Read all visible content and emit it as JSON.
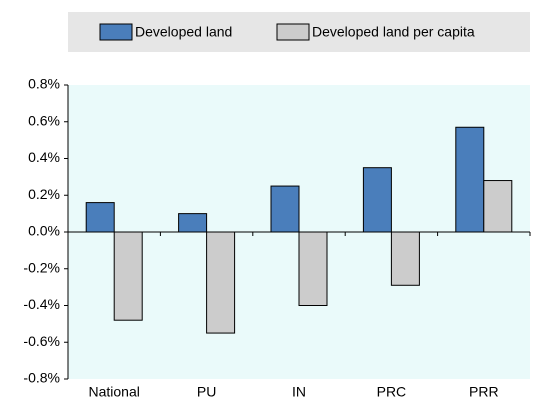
{
  "chart_data": {
    "type": "bar",
    "categories": [
      "National",
      "PU",
      "IN",
      "PRC",
      "PRR"
    ],
    "series": [
      {
        "name": "Developed land",
        "color": "#4a7ebb",
        "values": [
          0.16,
          0.1,
          0.25,
          0.35,
          0.57
        ]
      },
      {
        "name": "Developed land per capita",
        "color": "#cccccc",
        "values": [
          -0.48,
          -0.55,
          -0.4,
          -0.29,
          0.28
        ]
      }
    ],
    "ylim": [
      -0.8,
      0.8
    ],
    "yticks": [
      {
        "value": -0.8,
        "label": "-0.8%"
      },
      {
        "value": -0.6,
        "label": "-0.6%"
      },
      {
        "value": -0.4,
        "label": "-0.4%"
      },
      {
        "value": -0.2,
        "label": "-0.2%"
      },
      {
        "value": 0,
        "label": "0.0%"
      },
      {
        "value": 0.2,
        "label": "0.2%"
      },
      {
        "value": 0.4,
        "label": "0.4%"
      },
      {
        "value": 0.6,
        "label": "0.6%"
      },
      {
        "value": 0.8,
        "label": "0.8%"
      }
    ],
    "legend": "top"
  }
}
